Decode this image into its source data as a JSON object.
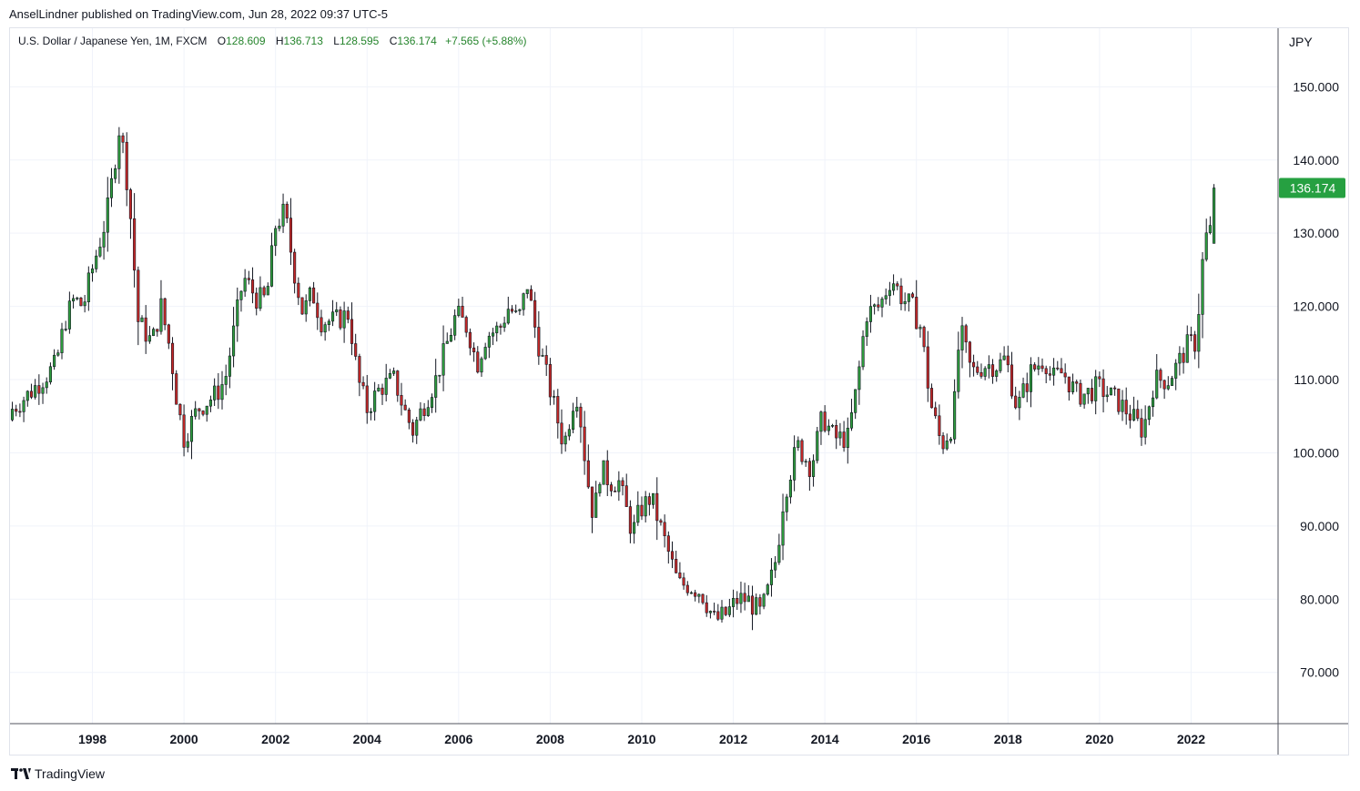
{
  "header": {
    "published_by": "AnselLindner published on TradingView.com, Jun 28, 2022 09:37 UTC-5"
  },
  "legend": {
    "symbol": "U.S. Dollar / Japanese Yen, 1M, FXCM",
    "open_label": "O",
    "open_value": "128.609",
    "high_label": "H",
    "high_value": "136.713",
    "low_label": "L",
    "low_value": "128.595",
    "close_label": "C",
    "close_value": "136.174",
    "change": "+7.565 (+5.88%)"
  },
  "axis": {
    "unit": "JPY",
    "last_price": "136.174"
  },
  "footer": {
    "brand": "TradingView"
  },
  "colors": {
    "up": "#26a69a",
    "up_body": "#2e9e3e",
    "down": "#c62828",
    "wick": "#131722",
    "grid": "#f0f3fa",
    "price_tag": "#26a041",
    "legend_values": "#26852d"
  },
  "chart_data": {
    "type": "candlestick",
    "interval": "1M",
    "ylim": [
      63,
      158
    ],
    "xlim": [
      1996.2,
      2023.9
    ],
    "y_ticks": [
      "70.000",
      "80.000",
      "90.000",
      "100.000",
      "110.000",
      "120.000",
      "130.000",
      "140.000",
      "150.000"
    ],
    "x_ticks": [
      "1998",
      "2000",
      "2002",
      "2004",
      "2006",
      "2008",
      "2010",
      "2012",
      "2014",
      "2016",
      "2018",
      "2020",
      "2022"
    ],
    "grid": true,
    "last_close": 136.174,
    "close_anchors": [
      [
        1996.25,
        106
      ],
      [
        1996.6,
        108
      ],
      [
        1996.9,
        110
      ],
      [
        1997.2,
        112
      ],
      [
        1997.4,
        118
      ],
      [
        1997.6,
        121
      ],
      [
        1997.8,
        120
      ],
      [
        1997.95,
        124
      ],
      [
        1998.3,
        132
      ],
      [
        1998.45,
        138
      ],
      [
        1998.6,
        145
      ],
      [
        1998.8,
        135
      ],
      [
        1999.0,
        118
      ],
      [
        1999.3,
        115
      ],
      [
        1999.5,
        120
      ],
      [
        1999.7,
        114
      ],
      [
        1999.85,
        107
      ],
      [
        2000.0,
        102
      ],
      [
        2000.3,
        106
      ],
      [
        2000.5,
        107
      ],
      [
        2000.7,
        108
      ],
      [
        2000.9,
        110
      ],
      [
        2001.1,
        117
      ],
      [
        2001.3,
        124
      ],
      [
        2001.6,
        121
      ],
      [
        2001.8,
        121
      ],
      [
        2002.0,
        131
      ],
      [
        2002.2,
        133
      ],
      [
        2002.4,
        125
      ],
      [
        2002.6,
        119
      ],
      [
        2002.8,
        122
      ],
      [
        2003.0,
        118
      ],
      [
        2003.3,
        118
      ],
      [
        2003.6,
        119
      ],
      [
        2003.8,
        110
      ],
      [
        2004.0,
        106
      ],
      [
        2004.3,
        109
      ],
      [
        2004.6,
        110
      ],
      [
        2004.8,
        106
      ],
      [
        2005.0,
        103
      ],
      [
        2005.2,
        106
      ],
      [
        2005.5,
        110
      ],
      [
        2005.8,
        116
      ],
      [
        2005.95,
        119
      ],
      [
        2006.2,
        117
      ],
      [
        2006.4,
        112
      ],
      [
        2006.6,
        116
      ],
      [
        2006.9,
        117
      ],
      [
        2007.1,
        120
      ],
      [
        2007.3,
        118
      ],
      [
        2007.5,
        123
      ],
      [
        2007.7,
        116
      ],
      [
        2007.9,
        111
      ],
      [
        2008.1,
        106
      ],
      [
        2008.3,
        101
      ],
      [
        2008.5,
        107
      ],
      [
        2008.6,
        108
      ],
      [
        2008.8,
        97
      ],
      [
        2008.95,
        91
      ],
      [
        2009.1,
        98
      ],
      [
        2009.3,
        96
      ],
      [
        2009.5,
        96
      ],
      [
        2009.8,
        89
      ],
      [
        2009.95,
        92
      ],
      [
        2010.2,
        94
      ],
      [
        2010.5,
        88
      ],
      [
        2010.8,
        82
      ],
      [
        2011.0,
        82
      ],
      [
        2011.3,
        81
      ],
      [
        2011.6,
        77
      ],
      [
        2011.85,
        78
      ],
      [
        2012.1,
        80
      ],
      [
        2012.3,
        80
      ],
      [
        2012.6,
        78
      ],
      [
        2012.8,
        82
      ],
      [
        2012.95,
        86
      ],
      [
        2013.1,
        94
      ],
      [
        2013.4,
        101
      ],
      [
        2013.7,
        98
      ],
      [
        2013.95,
        105
      ],
      [
        2014.2,
        102
      ],
      [
        2014.5,
        102
      ],
      [
        2014.7,
        109
      ],
      [
        2014.9,
        119
      ],
      [
        2015.2,
        120
      ],
      [
        2015.45,
        124
      ],
      [
        2015.7,
        121
      ],
      [
        2015.9,
        120
      ],
      [
        2016.1,
        117
      ],
      [
        2016.3,
        107
      ],
      [
        2016.55,
        101
      ],
      [
        2016.8,
        104
      ],
      [
        2016.95,
        117
      ],
      [
        2017.2,
        111
      ],
      [
        2017.5,
        112
      ],
      [
        2017.8,
        112
      ],
      [
        2017.95,
        113
      ],
      [
        2018.2,
        106
      ],
      [
        2018.5,
        111
      ],
      [
        2018.8,
        113
      ],
      [
        2018.95,
        110
      ],
      [
        2019.2,
        111
      ],
      [
        2019.5,
        108
      ],
      [
        2019.7,
        108
      ],
      [
        2019.95,
        109
      ],
      [
        2020.2,
        108
      ],
      [
        2020.4,
        107
      ],
      [
        2020.7,
        105
      ],
      [
        2020.95,
        103
      ],
      [
        2021.2,
        110
      ],
      [
        2021.5,
        110
      ],
      [
        2021.7,
        112
      ],
      [
        2021.95,
        115
      ],
      [
        2022.1,
        115
      ],
      [
        2022.2,
        122
      ],
      [
        2022.3,
        130
      ],
      [
        2022.4,
        128.609
      ],
      [
        2022.48,
        136.174
      ]
    ]
  }
}
